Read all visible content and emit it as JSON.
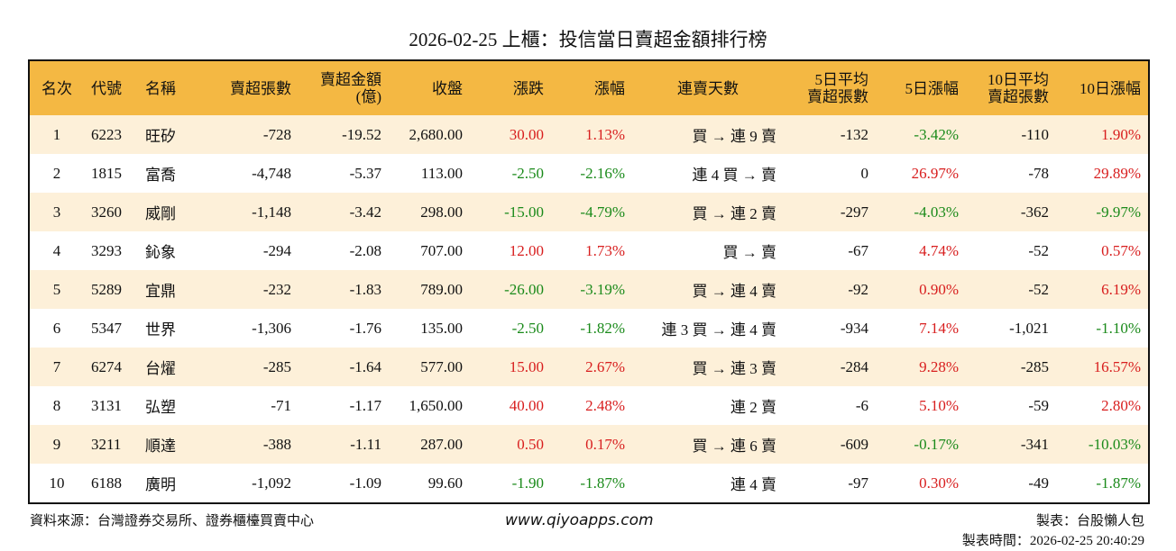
{
  "title": "2026-02-25 上櫃：投信當日賣超金額排行榜",
  "table": {
    "header": [
      "名次",
      "代號",
      "名稱",
      "賣超張數",
      "賣超金額\n(億)",
      "收盤",
      "漲跌",
      "漲幅",
      "連賣天數",
      "5日平均\n賣超張數",
      "5日漲幅",
      "10日平均\n賣超張數",
      "10日漲幅"
    ],
    "rows": [
      [
        "1",
        "6223",
        "旺矽",
        "-728",
        "-19.52",
        "2,680.00",
        "30.00",
        "1.13%",
        "買 → 連 9 賣",
        "-132",
        "-3.42%",
        "-110",
        "1.90%"
      ],
      [
        "2",
        "1815",
        "富喬",
        "-4,748",
        "-5.37",
        "113.00",
        "-2.50",
        "-2.16%",
        "連 4 買 → 賣",
        "0",
        "26.97%",
        "-78",
        "29.89%"
      ],
      [
        "3",
        "3260",
        "威剛",
        "-1,148",
        "-3.42",
        "298.00",
        "-15.00",
        "-4.79%",
        "買 → 連 2 賣",
        "-297",
        "-4.03%",
        "-362",
        "-9.97%"
      ],
      [
        "4",
        "3293",
        "鈊象",
        "-294",
        "-2.08",
        "707.00",
        "12.00",
        "1.73%",
        "買 → 賣",
        "-67",
        "4.74%",
        "-52",
        "0.57%"
      ],
      [
        "5",
        "5289",
        "宜鼎",
        "-232",
        "-1.83",
        "789.00",
        "-26.00",
        "-3.19%",
        "買 → 連 4 賣",
        "-92",
        "0.90%",
        "-52",
        "6.19%"
      ],
      [
        "6",
        "5347",
        "世界",
        "-1,306",
        "-1.76",
        "135.00",
        "-2.50",
        "-1.82%",
        "連 3 買 → 連 4 賣",
        "-934",
        "7.14%",
        "-1,021",
        "-1.10%"
      ],
      [
        "7",
        "6274",
        "台燿",
        "-285",
        "-1.64",
        "577.00",
        "15.00",
        "2.67%",
        "買 → 連 3 賣",
        "-284",
        "9.28%",
        "-285",
        "16.57%"
      ],
      [
        "8",
        "3131",
        "弘塑",
        "-71",
        "-1.17",
        "1,650.00",
        "40.00",
        "2.48%",
        "連 2 賣",
        "-6",
        "5.10%",
        "-59",
        "2.80%"
      ],
      [
        "9",
        "3211",
        "順達",
        "-388",
        "-1.11",
        "287.00",
        "0.50",
        "0.17%",
        "買 → 連 6 賣",
        "-609",
        "-0.17%",
        "-341",
        "-10.03%"
      ],
      [
        "10",
        "6188",
        "廣明",
        "-1,092",
        "-1.09",
        "99.60",
        "-1.90",
        "-1.87%",
        "連 4 賣",
        "-97",
        "0.30%",
        "-49",
        "-1.87%"
      ]
    ]
  },
  "footer": {
    "source": "資料來源：台灣證券交易所、證券櫃檯買賣中心",
    "site": "www.qiyoapps.com",
    "maker": "製表：台股懶人包",
    "time": "製表時間：2026-02-25 20:40:29"
  }
}
